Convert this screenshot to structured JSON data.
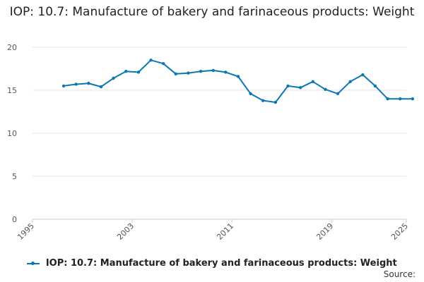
{
  "chart_data": {
    "type": "line",
    "title": "IOP: 10.7: Manufacture of bakery and farinaceous products: Weight",
    "xlim": [
      1995,
      2025
    ],
    "ylim": [
      0,
      20
    ],
    "x_ticks": [
      "1995",
      "2003",
      "2011",
      "2019",
      "2025"
    ],
    "y_ticks": [
      "0",
      "5",
      "10",
      "15",
      "20"
    ],
    "grid": true,
    "legend_position": "bottom",
    "series": [
      {
        "name": "IOP: 10.7: Manufacture of bakery and farinaceous products: Weight",
        "color": "#0b78b4",
        "x": [
          1997.5,
          1998.5,
          1999.5,
          2000.5,
          2001.5,
          2002.5,
          2003.5,
          2004.5,
          2005.5,
          2006.5,
          2007.5,
          2008.5,
          2009.5,
          2010.5,
          2011.5,
          2012.5,
          2013.5,
          2014.5,
          2015.5,
          2016.5,
          2017.5,
          2018.5,
          2019.5,
          2020.5,
          2021.5,
          2022.5,
          2023.5,
          2024.5,
          2025.5
        ],
        "values": [
          15.5,
          15.7,
          15.8,
          15.4,
          16.4,
          17.2,
          17.1,
          18.5,
          18.1,
          16.9,
          17.0,
          17.2,
          17.3,
          17.1,
          16.6,
          14.6,
          13.8,
          13.6,
          15.5,
          15.3,
          16.0,
          15.1,
          14.6,
          16.0,
          16.8,
          15.5,
          14.0,
          14.0,
          14.0
        ]
      }
    ]
  },
  "legend": {
    "label": "IOP: 10.7: Manufacture of bakery and farinaceous products: Weight"
  },
  "source": {
    "label": "Source:"
  }
}
